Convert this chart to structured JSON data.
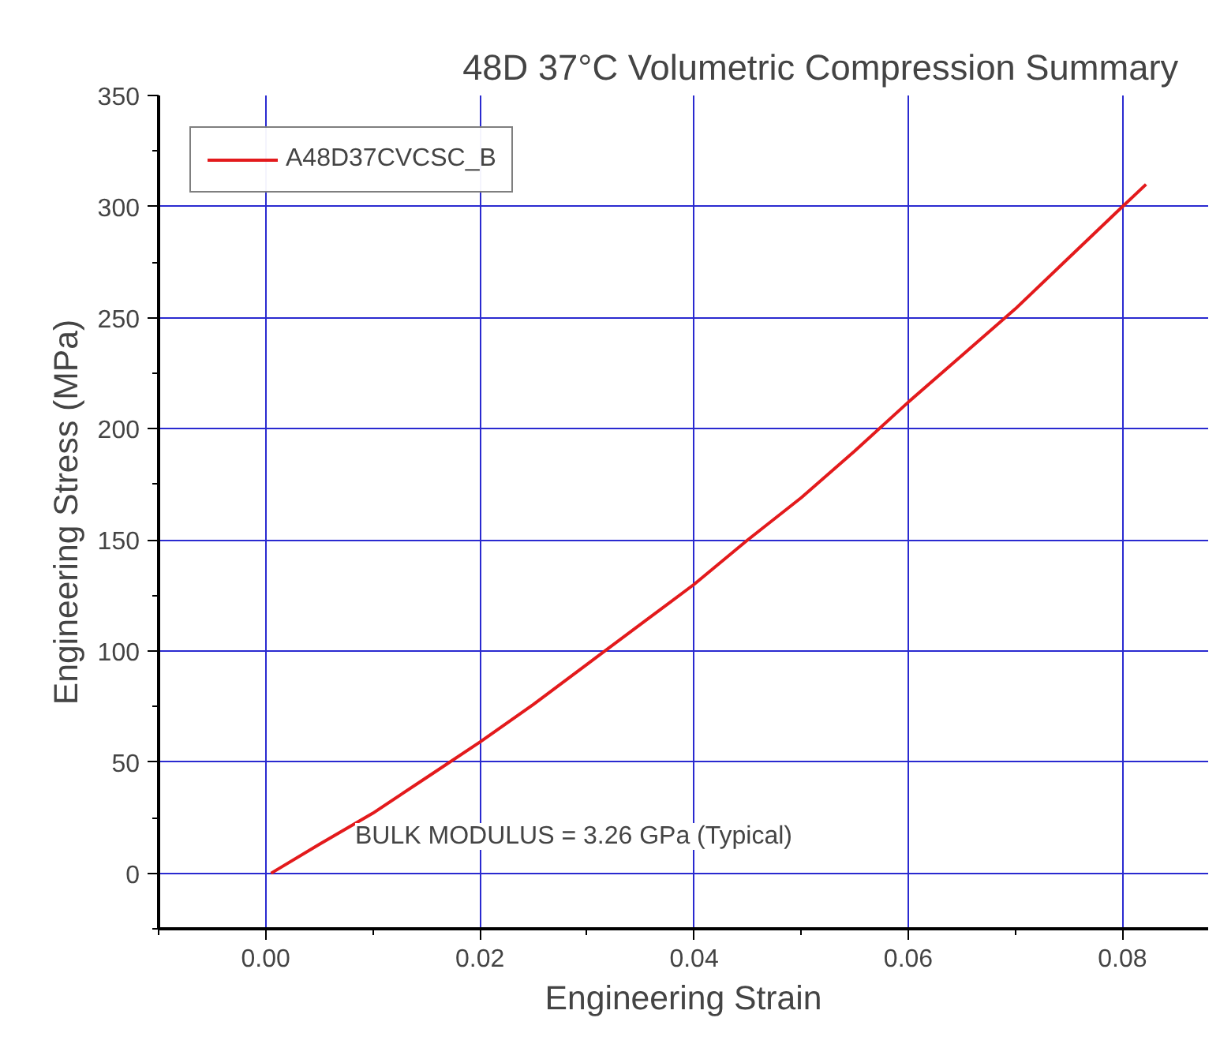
{
  "chart_data": {
    "type": "line",
    "title": "48D  37°C   Volumetric Compression Summary",
    "xlabel": "Engineering Strain",
    "ylabel": "Engineering Stress (MPa)",
    "series": [
      {
        "name": "A48D37CVCSC_B",
        "color": "#e31a1c",
        "x": [
          0.0005,
          0.005,
          0.01,
          0.015,
          0.02,
          0.025,
          0.03,
          0.035,
          0.04,
          0.045,
          0.05,
          0.055,
          0.06,
          0.065,
          0.07,
          0.075,
          0.08,
          0.0822
        ],
        "values": [
          0,
          13,
          27,
          43,
          59,
          76,
          94,
          112,
          130,
          150,
          169,
          190,
          212,
          233,
          254,
          277,
          300,
          310
        ]
      }
    ],
    "xlim": [
      -0.01,
      0.088
    ],
    "ylim": [
      -25,
      350
    ],
    "xticks": [
      {
        "value": 0,
        "label": "0.00"
      },
      {
        "value": 0.02,
        "label": "0.02"
      },
      {
        "value": 0.04,
        "label": "0.04"
      },
      {
        "value": 0.06,
        "label": "0.06"
      },
      {
        "value": 0.08,
        "label": "0.08"
      }
    ],
    "yticks": [
      0,
      50,
      100,
      150,
      200,
      250,
      300,
      350
    ],
    "grid": true,
    "legend": "top left",
    "line_style": "solid",
    "marker": "none",
    "annotations": [
      "BULK MODULUS = 3.26 GPa (Typical)"
    ]
  }
}
